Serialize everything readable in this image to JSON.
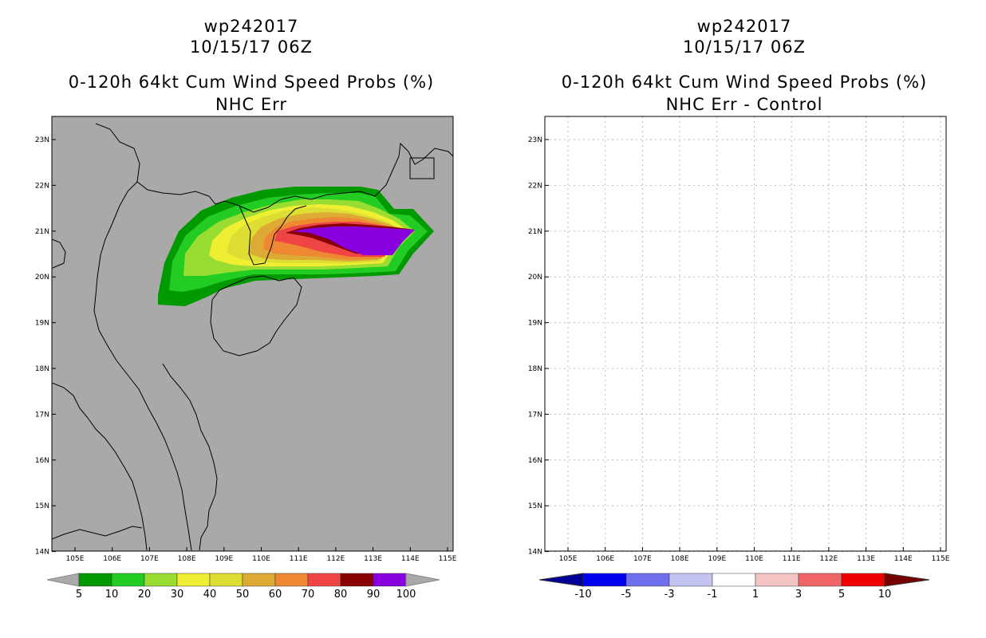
{
  "left_panel": {
    "storm_id": "wp242017",
    "datetime": "10/15/17 06Z",
    "title": "0-120h 64kt Cum Wind Speed Probs (%)",
    "subtitle": "NHC Err",
    "x_ticks": [
      "105E",
      "106E",
      "107E",
      "108E",
      "109E",
      "110E",
      "111E",
      "112E",
      "113E",
      "114E",
      "115E"
    ],
    "y_ticks": [
      "23N",
      "22N",
      "21N",
      "20N",
      "19N",
      "18N",
      "17N",
      "16N",
      "15N",
      "14N"
    ],
    "colorbar_labels": [
      "5",
      "10",
      "20",
      "30",
      "40",
      "50",
      "60",
      "70",
      "80",
      "90",
      "100"
    ],
    "colorbar_colors": [
      "#009900",
      "#22cc22",
      "#99dd33",
      "#eeee33",
      "#dddd33",
      "#ddaa33",
      "#ee8833",
      "#ee4444",
      "#880000",
      "#8800dd"
    ],
    "background_color": "#a9a9a9"
  },
  "right_panel": {
    "storm_id": "wp242017",
    "datetime": "10/15/17 06Z",
    "title": "0-120h 64kt Cum Wind Speed Probs (%)",
    "subtitle": "NHC Err - Control",
    "x_ticks": [
      "105E",
      "106E",
      "107E",
      "108E",
      "109E",
      "110E",
      "111E",
      "112E",
      "113E",
      "114E",
      "115E"
    ],
    "y_ticks": [
      "23N",
      "22N",
      "21N",
      "20N",
      "19N",
      "18N",
      "17N",
      "16N",
      "15N",
      "14N"
    ],
    "colorbar_labels": [
      "-10",
      "-5",
      "-3",
      "-1",
      "1",
      "3",
      "5",
      "10"
    ],
    "colorbar_colors": [
      "#000099",
      "#0000ee",
      "#6f6fee",
      "#c4c4f2",
      "#ffffff",
      "#f4c4c4",
      "#f06666",
      "#ee0000",
      "#770000"
    ]
  }
}
